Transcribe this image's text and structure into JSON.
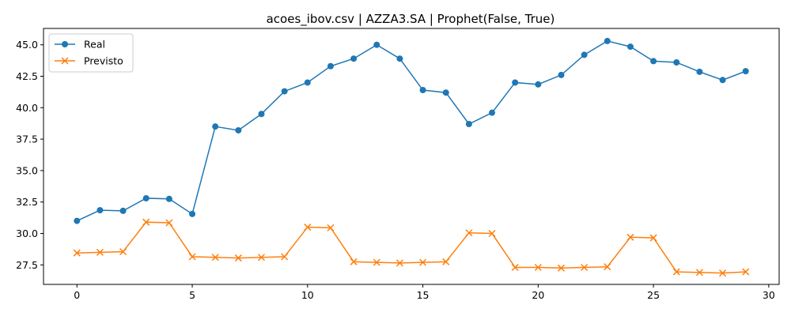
{
  "chart_data": {
    "type": "line",
    "title": "acoes_ibov.csv | AZZA3.SA | Prophet(False, True)",
    "xlabel": "",
    "ylabel": "",
    "xlim": [
      -1.45,
      30.45
    ],
    "ylim": [
      25.95,
      46.3
    ],
    "xticks": [
      0,
      5,
      10,
      15,
      20,
      25,
      30
    ],
    "yticks": [
      27.5,
      30.0,
      32.5,
      35.0,
      37.5,
      40.0,
      42.5,
      45.0
    ],
    "grid": false,
    "legend_position": "top-left",
    "x": [
      0,
      1,
      2,
      3,
      4,
      5,
      6,
      7,
      8,
      9,
      10,
      11,
      12,
      13,
      14,
      15,
      16,
      17,
      18,
      19,
      20,
      21,
      22,
      23,
      24,
      25,
      26,
      27,
      28,
      29
    ],
    "series": [
      {
        "name": "Real",
        "color": "#1f77b4",
        "marker": "circle",
        "values": [
          31.0,
          31.85,
          31.8,
          32.8,
          32.75,
          31.55,
          38.5,
          38.2,
          39.5,
          41.3,
          42.0,
          43.3,
          43.9,
          45.0,
          43.9,
          41.4,
          41.2,
          38.7,
          39.6,
          42.0,
          41.85,
          42.6,
          44.2,
          45.3,
          44.85,
          43.7,
          43.6,
          42.85,
          42.2,
          42.9
        ]
      },
      {
        "name": "Previsto",
        "color": "#ff7f0e",
        "marker": "x",
        "values": [
          28.45,
          28.5,
          28.55,
          30.9,
          30.85,
          28.15,
          28.1,
          28.05,
          28.1,
          28.15,
          30.5,
          30.45,
          27.75,
          27.7,
          27.65,
          27.7,
          27.75,
          30.05,
          30.0,
          27.3,
          27.3,
          27.25,
          27.3,
          27.35,
          29.7,
          29.65,
          26.95,
          26.9,
          26.85,
          26.95
        ]
      }
    ]
  }
}
